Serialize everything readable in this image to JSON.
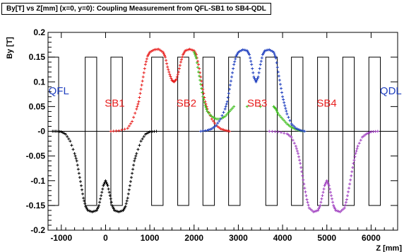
{
  "chart_data": {
    "type": "scatter",
    "title": "By[T] vs Z[mm] (x=0, y=0): Coupling Measurement from QFL-SB1 to SB4-QDL",
    "xlabel": "Z [mm]",
    "ylabel": "By [T]",
    "xlim": [
      -1300,
      6600
    ],
    "ylim": [
      -0.2,
      0.2
    ],
    "x_ticks": [
      -1000,
      0,
      1000,
      2000,
      3000,
      4000,
      5000,
      6000
    ],
    "x_tick_labels": [
      "-1000",
      "0",
      "1000",
      "2000",
      "3000",
      "4000",
      "5000",
      "6000"
    ],
    "y_ticks": [
      -0.2,
      -0.15,
      -0.1,
      -0.05,
      0,
      0.05,
      0.1,
      0.15,
      0.2
    ],
    "y_tick_labels": [
      "-0.2",
      "-0.15",
      "-0.1",
      "-0.05",
      "-0",
      "0.05",
      "0.1",
      "0.15",
      "0.2"
    ],
    "grid": false,
    "magnet_boxes": [
      {
        "x0": -1300,
        "x1": -1060,
        "y0": -0.15,
        "y1": 0.15
      },
      {
        "x0": -460,
        "x1": -200,
        "y0": -0.15,
        "y1": 0.15
      },
      {
        "x0": 120,
        "x1": 380,
        "y0": -0.15,
        "y1": 0.15
      },
      {
        "x0": 1040,
        "x1": 1300,
        "y0": -0.15,
        "y1": 0.15
      },
      {
        "x0": 1630,
        "x1": 1880,
        "y0": -0.15,
        "y1": 0.15
      },
      {
        "x0": 2200,
        "x1": 2460,
        "y0": -0.15,
        "y1": 0.15
      },
      {
        "x0": 2780,
        "x1": 3040,
        "y0": -0.15,
        "y1": 0.15
      },
      {
        "x0": 3620,
        "x1": 3880,
        "y0": -0.15,
        "y1": 0.15
      },
      {
        "x0": 4200,
        "x1": 4460,
        "y0": -0.15,
        "y1": 0.15
      },
      {
        "x0": 4790,
        "x1": 5040,
        "y0": -0.15,
        "y1": 0.15
      },
      {
        "x0": 5360,
        "x1": 5620,
        "y0": -0.15,
        "y1": 0.15
      },
      {
        "x0": 5950,
        "x1": 6210,
        "y0": -0.15,
        "y1": 0.15
      }
    ],
    "annotations": [
      {
        "text": "QFL",
        "x": -1290,
        "y": 0.075,
        "color": "#1f3fbf"
      },
      {
        "text": "SB1",
        "x": -20,
        "y": 0.05,
        "color": "#e8201f"
      },
      {
        "text": "SB2",
        "x": 1600,
        "y": 0.05,
        "color": "#e8201f"
      },
      {
        "text": "SB3",
        "x": 3200,
        "y": 0.05,
        "color": "#e8201f"
      },
      {
        "text": "SB4",
        "x": 4770,
        "y": 0.05,
        "color": "#e8201f"
      },
      {
        "text": "QDL",
        "x": 6200,
        "y": 0.075,
        "color": "#1f3fbf"
      }
    ],
    "series": [
      {
        "color": "#000000",
        "points": [
          [
            -1200,
            0.0
          ],
          [
            -1100,
            0.0
          ],
          [
            -1000,
            -0.001
          ],
          [
            -900,
            -0.006
          ],
          [
            -800,
            -0.02
          ],
          [
            -700,
            -0.045
          ],
          [
            -650,
            -0.06
          ],
          [
            -600,
            -0.085
          ],
          [
            -550,
            -0.11
          ],
          [
            -500,
            -0.135
          ],
          [
            -450,
            -0.152
          ],
          [
            -400,
            -0.16
          ],
          [
            -300,
            -0.163
          ],
          [
            -200,
            -0.16
          ],
          [
            -150,
            -0.15
          ],
          [
            -100,
            -0.13
          ],
          [
            -50,
            -0.11
          ],
          [
            0,
            -0.1
          ],
          [
            50,
            -0.11
          ],
          [
            100,
            -0.13
          ],
          [
            150,
            -0.15
          ],
          [
            200,
            -0.16
          ],
          [
            300,
            -0.163
          ],
          [
            400,
            -0.16
          ],
          [
            450,
            -0.152
          ],
          [
            500,
            -0.135
          ],
          [
            550,
            -0.11
          ],
          [
            600,
            -0.085
          ],
          [
            650,
            -0.06
          ],
          [
            700,
            -0.045
          ],
          [
            800,
            -0.02
          ],
          [
            900,
            -0.006
          ],
          [
            1000,
            -0.001
          ],
          [
            1150,
            0.0
          ]
        ]
      },
      {
        "color": "#e8201f",
        "points": [
          [
            120,
            0.0
          ],
          [
            300,
            0.001
          ],
          [
            500,
            0.006
          ],
          [
            600,
            0.02
          ],
          [
            700,
            0.045
          ],
          [
            750,
            0.06
          ],
          [
            800,
            0.085
          ],
          [
            850,
            0.11
          ],
          [
            900,
            0.135
          ],
          [
            950,
            0.152
          ],
          [
            1000,
            0.16
          ],
          [
            1100,
            0.165
          ],
          [
            1200,
            0.166
          ],
          [
            1300,
            0.16
          ],
          [
            1350,
            0.15
          ],
          [
            1400,
            0.13
          ],
          [
            1450,
            0.115
          ],
          [
            1500,
            0.103
          ],
          [
            1550,
            0.1
          ],
          [
            1600,
            0.105
          ],
          [
            1650,
            0.12
          ],
          [
            1700,
            0.14
          ],
          [
            1750,
            0.155
          ],
          [
            1800,
            0.163
          ],
          [
            1900,
            0.166
          ],
          [
            2000,
            0.163
          ],
          [
            2050,
            0.155
          ],
          [
            2100,
            0.135
          ],
          [
            2150,
            0.11
          ],
          [
            2200,
            0.085
          ],
          [
            2250,
            0.06
          ],
          [
            2300,
            0.045
          ],
          [
            2400,
            0.025
          ],
          [
            2500,
            0.012
          ],
          [
            2600,
            0.005
          ],
          [
            2700,
            0.002
          ],
          [
            2800,
            0.0
          ]
        ]
      },
      {
        "color": "#3fbf1f",
        "points": [
          [
            2000,
            0.16
          ],
          [
            2050,
            0.148
          ],
          [
            2100,
            0.12
          ],
          [
            2150,
            0.095
          ],
          [
            2200,
            0.07
          ],
          [
            2250,
            0.052
          ],
          [
            2300,
            0.04
          ],
          [
            2400,
            0.03
          ],
          [
            2500,
            0.025
          ],
          [
            2600,
            0.025
          ],
          [
            2700,
            0.03
          ],
          [
            2800,
            0.04
          ],
          [
            2900,
            0.05
          ],
          [
            3800,
            0.05
          ],
          [
            3850,
            0.045
          ],
          [
            3900,
            0.035
          ],
          [
            4000,
            0.025
          ],
          [
            4100,
            0.015
          ],
          [
            4200,
            0.008
          ],
          [
            4300,
            0.004
          ],
          [
            4400,
            0.001
          ],
          [
            4500,
            0.0
          ]
        ]
      },
      {
        "color": "#1f3fbf",
        "points": [
          [
            2150,
            0.0
          ],
          [
            2300,
            0.002
          ],
          [
            2400,
            0.005
          ],
          [
            2500,
            0.012
          ],
          [
            2600,
            0.025
          ],
          [
            2700,
            0.045
          ],
          [
            2750,
            0.06
          ],
          [
            2800,
            0.085
          ],
          [
            2850,
            0.11
          ],
          [
            2900,
            0.135
          ],
          [
            2950,
            0.152
          ],
          [
            3000,
            0.16
          ],
          [
            3100,
            0.165
          ],
          [
            3200,
            0.163
          ],
          [
            3250,
            0.155
          ],
          [
            3300,
            0.135
          ],
          [
            3350,
            0.11
          ],
          [
            3400,
            0.1
          ],
          [
            3450,
            0.11
          ],
          [
            3500,
            0.135
          ],
          [
            3550,
            0.155
          ],
          [
            3600,
            0.163
          ],
          [
            3700,
            0.165
          ],
          [
            3800,
            0.16
          ],
          [
            3850,
            0.148
          ],
          [
            3900,
            0.12
          ],
          [
            3950,
            0.095
          ],
          [
            4000,
            0.07
          ],
          [
            4050,
            0.052
          ],
          [
            4100,
            0.035
          ],
          [
            4200,
            0.015
          ],
          [
            4300,
            0.006
          ],
          [
            4400,
            0.002
          ],
          [
            4500,
            0.0
          ]
        ]
      },
      {
        "color": "#a040c0",
        "points": [
          [
            3700,
            0.0
          ],
          [
            3900,
            -0.001
          ],
          [
            4100,
            -0.005
          ],
          [
            4200,
            -0.012
          ],
          [
            4300,
            -0.03
          ],
          [
            4350,
            -0.045
          ],
          [
            4400,
            -0.065
          ],
          [
            4450,
            -0.09
          ],
          [
            4500,
            -0.115
          ],
          [
            4550,
            -0.138
          ],
          [
            4600,
            -0.155
          ],
          [
            4700,
            -0.163
          ],
          [
            4800,
            -0.16
          ],
          [
            4850,
            -0.15
          ],
          [
            4900,
            -0.13
          ],
          [
            4950,
            -0.11
          ],
          [
            5000,
            -0.1
          ],
          [
            5050,
            -0.11
          ],
          [
            5100,
            -0.13
          ],
          [
            5150,
            -0.15
          ],
          [
            5200,
            -0.16
          ],
          [
            5300,
            -0.163
          ],
          [
            5400,
            -0.155
          ],
          [
            5450,
            -0.138
          ],
          [
            5500,
            -0.115
          ],
          [
            5550,
            -0.09
          ],
          [
            5600,
            -0.065
          ],
          [
            5650,
            -0.045
          ],
          [
            5700,
            -0.03
          ],
          [
            5800,
            -0.012
          ],
          [
            5900,
            -0.005
          ],
          [
            6000,
            -0.001
          ],
          [
            6150,
            0.0
          ]
        ]
      }
    ]
  }
}
